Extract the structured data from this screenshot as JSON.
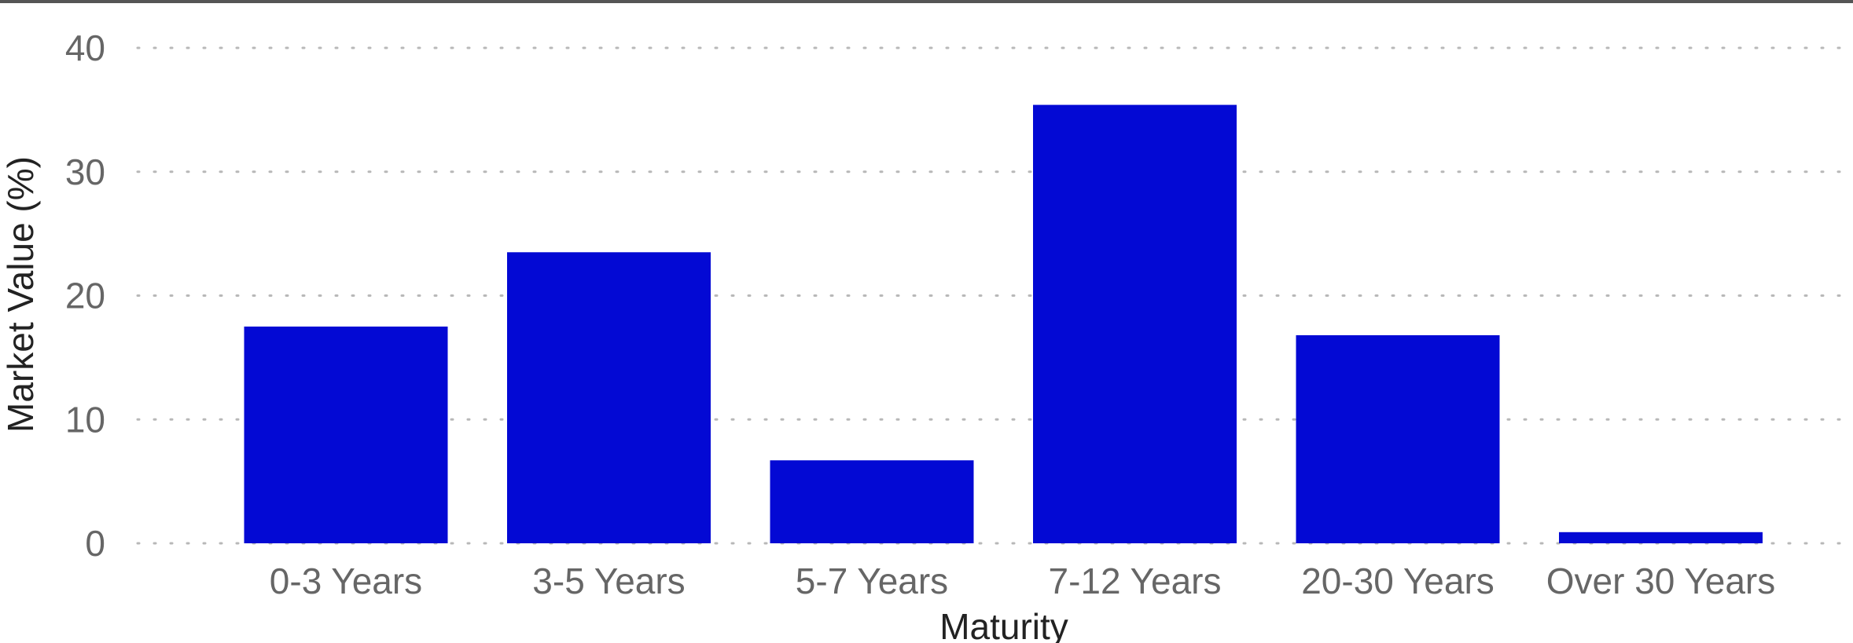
{
  "chart_data": {
    "type": "bar",
    "categories": [
      "0-3 Years",
      "3-5 Years",
      "5-7 Years",
      "7-12 Years",
      "20-30 Years",
      "Over 30 Years"
    ],
    "values": [
      17.5,
      23.5,
      6.7,
      35.4,
      16.8,
      0.9
    ],
    "title": "",
    "xlabel": "Maturity",
    "ylabel": "Market Value (%)",
    "ylim": [
      0,
      40
    ],
    "yticks": [
      0,
      10,
      20,
      30,
      40
    ],
    "grid": true,
    "legend": "none",
    "colors": {
      "bar": "#0309d4",
      "top_border": "#555555"
    }
  }
}
